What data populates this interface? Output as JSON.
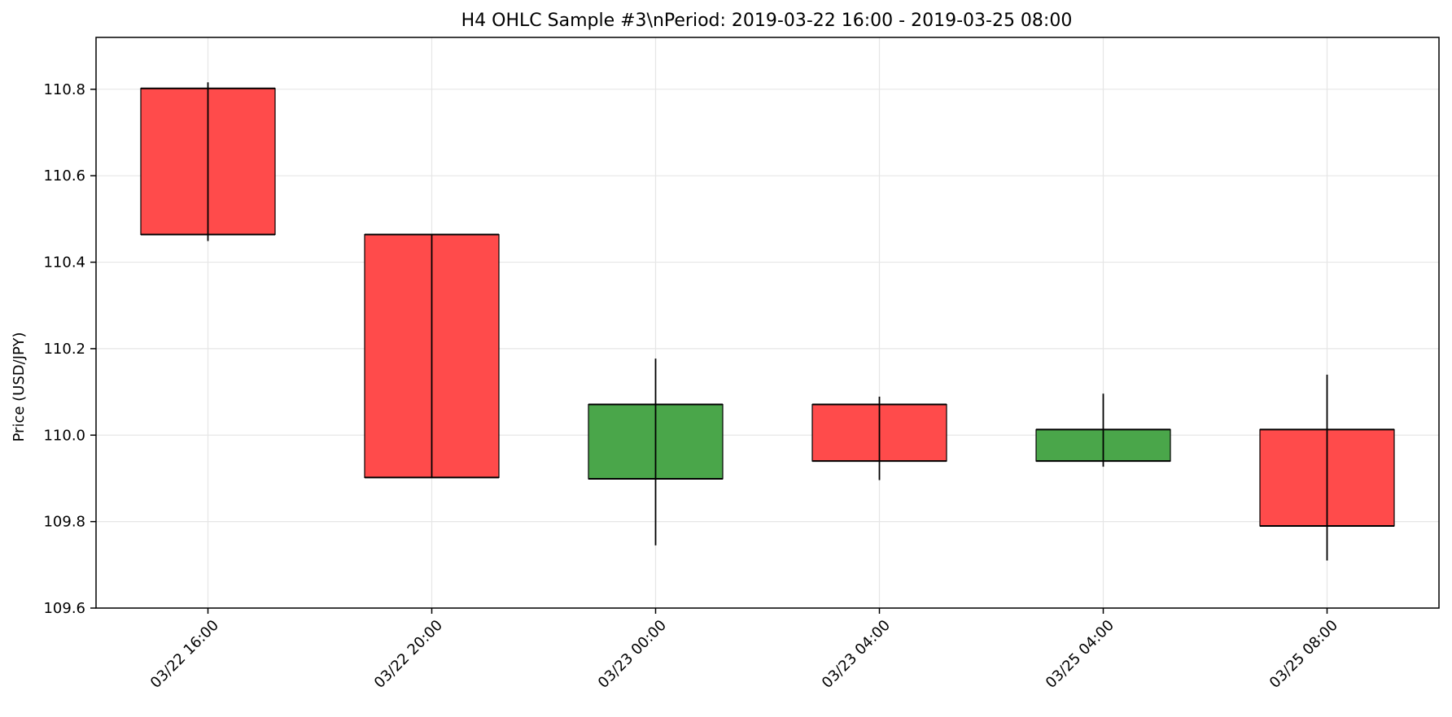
{
  "chart_data": {
    "type": "candlestick",
    "title": "H4 OHLC Sample #3\\nPeriod: 2019-03-22 16:00 - 2019-03-25 08:00",
    "xlabel": "",
    "ylabel": "Price (USD/JPY)",
    "ylim": [
      109.6,
      110.92
    ],
    "yticks": [
      "109.6",
      "109.8",
      "110.0",
      "110.2",
      "110.4",
      "110.6",
      "110.8"
    ],
    "grid": true,
    "colors": {
      "up": "#4aa64a",
      "down": "#ff4b4b"
    },
    "candles": [
      {
        "label": "03/22 16:00",
        "open": 110.802,
        "high": 110.816,
        "low": 110.449,
        "close": 110.464,
        "direction": "down"
      },
      {
        "label": "03/22 20:00",
        "open": 110.464,
        "high": 110.464,
        "low": 109.902,
        "close": 109.902,
        "direction": "down"
      },
      {
        "label": "03/23 00:00",
        "open": 109.899,
        "high": 110.177,
        "low": 109.745,
        "close": 110.071,
        "direction": "up"
      },
      {
        "label": "03/23 04:00",
        "open": 110.071,
        "high": 110.089,
        "low": 109.896,
        "close": 109.94,
        "direction": "down"
      },
      {
        "label": "03/25 04:00",
        "open": 109.94,
        "high": 110.096,
        "low": 109.927,
        "close": 110.013,
        "direction": "up"
      },
      {
        "label": "03/25 08:00",
        "open": 110.013,
        "high": 110.14,
        "low": 109.71,
        "close": 109.79,
        "direction": "down"
      }
    ]
  }
}
